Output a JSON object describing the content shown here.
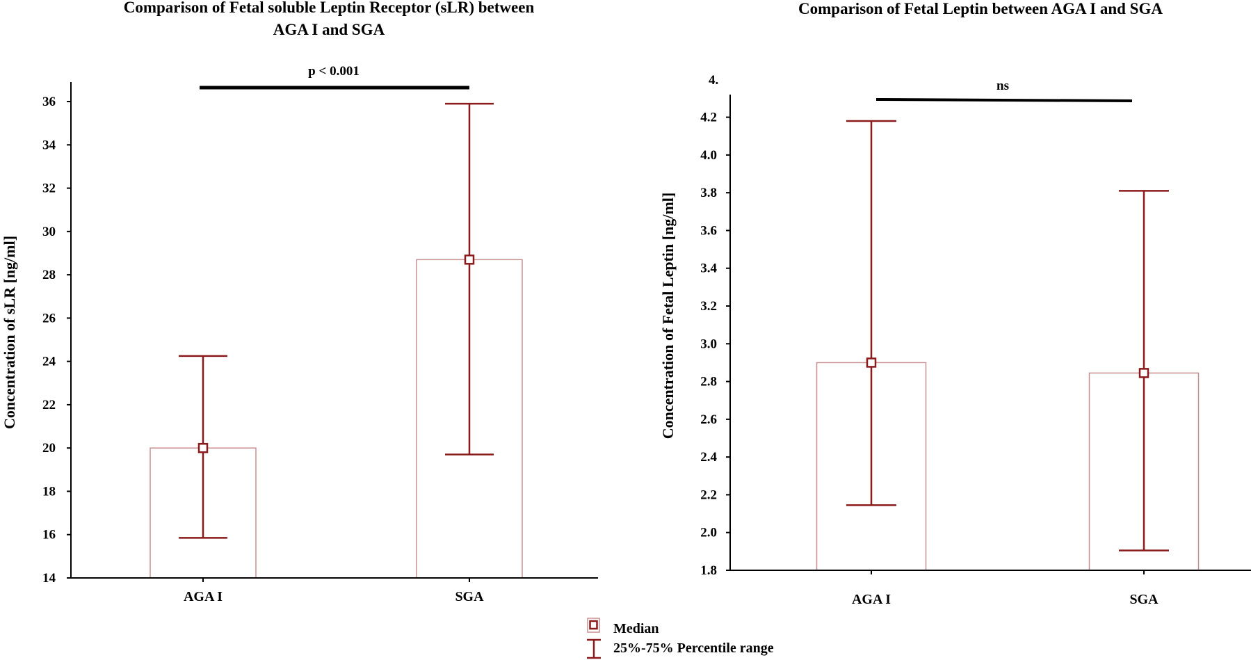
{
  "chart_data": [
    {
      "type": "bar",
      "title_lines": [
        "Comparison of Fetal soluble Leptin Receptor (sLR) between",
        "AGA I and SGA"
      ],
      "categories": [
        "AGA I",
        "SGA"
      ],
      "medians": [
        20.0,
        28.7
      ],
      "percentile_25": [
        15.85,
        19.7
      ],
      "percentile_75": [
        24.25,
        35.9
      ],
      "xlabel": "",
      "ylabel": "Concentration of sLR [ng/ml]",
      "ylim": [
        14,
        36.9
      ],
      "yticks": [
        "14",
        "16",
        "18",
        "20",
        "22",
        "24",
        "26",
        "28",
        "30",
        "32",
        "34",
        "36"
      ],
      "significance": "p < 0.001",
      "grid": false
    },
    {
      "type": "bar",
      "title_lines": [
        "Comparison of Fetal Leptin between AGA I and SGA"
      ],
      "categories": [
        "AGA I",
        "SGA"
      ],
      "medians": [
        2.9,
        2.845
      ],
      "percentile_25": [
        2.145,
        1.905
      ],
      "percentile_75": [
        4.18,
        3.81
      ],
      "xlabel": "",
      "ylabel": "Concentration of Fetal Leptin [ng/ml]",
      "ylim": [
        1.8,
        4.32
      ],
      "yticks": [
        "1.8",
        "2.0",
        "2.2",
        "2.4",
        "2.6",
        "2.8",
        "3.0",
        "3.2",
        "3.4",
        "3.6",
        "3.8",
        "4.0",
        "4.2"
      ],
      "top_tick_label": "4.",
      "significance": "ns",
      "grid": false
    }
  ],
  "legend": {
    "median_label": "Median",
    "range_label": "25%-75% Percentile range"
  },
  "colors": {
    "bar_edge": "#c89090",
    "marker": "#8b1a1a",
    "axis": "#000000"
  }
}
